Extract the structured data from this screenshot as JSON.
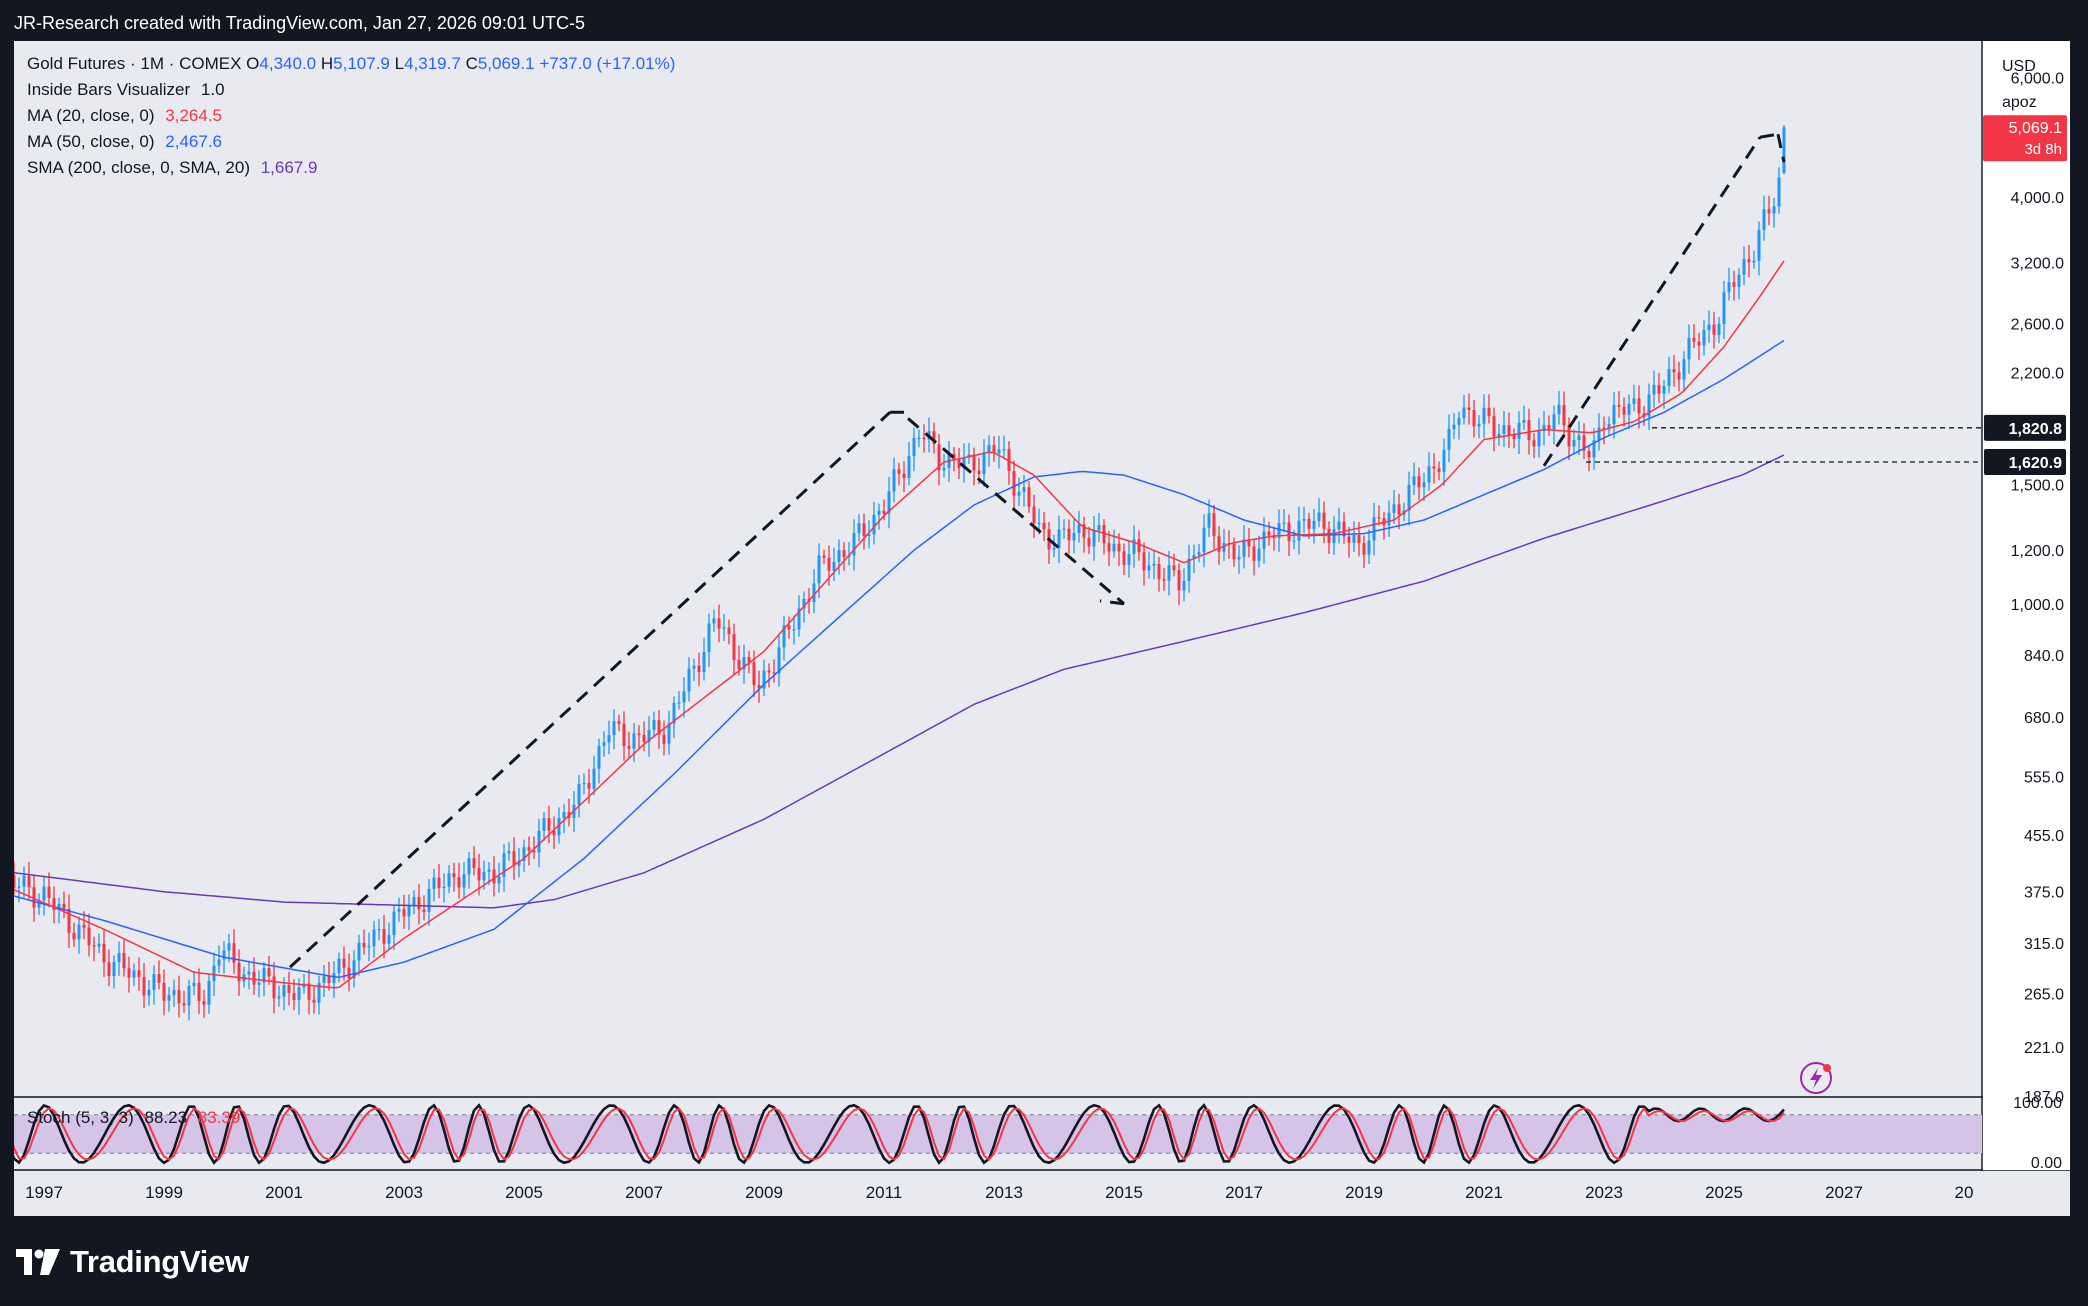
{
  "header": {
    "attribution": "JR-Research created with TradingView.com, Jan 27, 2026 09:01 UTC-5"
  },
  "legend": {
    "symbol": "Gold Futures · 1M · COMEX",
    "open_label": "O",
    "open": "4,340.0",
    "high_label": "H",
    "high": "5,107.9",
    "low_label": "L",
    "low": "4,319.7",
    "close_label": "C",
    "close": "5,069.1",
    "change": "+737.0 (+17.01%)",
    "indicators": [
      {
        "name": "Inside Bars Visualizer",
        "value": "1.0",
        "color": "#131722"
      },
      {
        "name": "MA (20, close, 0)",
        "value": "3,264.5",
        "color": "#f23645"
      },
      {
        "name": "MA (50, close, 0)",
        "value": "2,467.6",
        "color": "#2962ff"
      },
      {
        "name": "SMA (200, close, 0, SMA, 20)",
        "value": "1,667.9",
        "color": "#673ab7"
      }
    ]
  },
  "price_axis": {
    "currency": "USD",
    "scale_mode": "apoz",
    "ticks": [
      "6,000.0",
      "4,000.0",
      "3,200.0",
      "2,600.0",
      "2,200.0",
      "1,500.0",
      "1,200.0",
      "1,000.0",
      "840.0",
      "680.0",
      "555.0",
      "455.0",
      "375.0",
      "315.0",
      "265.0",
      "221.0",
      "187.0"
    ],
    "last_price": "5,069.1",
    "countdown": "3d 8h",
    "level_labels": [
      "1,820.8",
      "1,620.9"
    ]
  },
  "stoch": {
    "label": "Stoch (5, 3, 3)",
    "k": "88.23",
    "d": "83.39",
    "ticks": [
      "100.00",
      "0.00"
    ]
  },
  "time_axis": {
    "ticks": [
      "1997",
      "1999",
      "2001",
      "2003",
      "2005",
      "2007",
      "2009",
      "2011",
      "2013",
      "2015",
      "2017",
      "2019",
      "2021",
      "2023",
      "2025",
      "2027",
      "20"
    ]
  },
  "footer": {
    "brand": "TradingView"
  },
  "colors": {
    "up": "#2196f3",
    "down": "#f23645",
    "ma20": "#f23645",
    "ma50": "#2962ff",
    "sma200": "#673ab7",
    "stoch_k": "#131722",
    "stoch_d": "#f23645",
    "stoch_band": "#d6c4e8"
  },
  "chart_data": {
    "type": "candlestick",
    "scale": "log",
    "ylim": [
      187,
      6800
    ],
    "xlim": [
      1996.5,
      2029.3
    ],
    "price_path": [
      [
        1996.0,
        400
      ],
      [
        1997.0,
        370
      ],
      [
        1998.0,
        300
      ],
      [
        1999.0,
        265
      ],
      [
        1999.7,
        262
      ],
      [
        1999.9,
        310
      ],
      [
        2000.3,
        285
      ],
      [
        2000.9,
        270
      ],
      [
        2001.3,
        262
      ],
      [
        2001.9,
        285
      ],
      [
        2002.5,
        320
      ],
      [
        2003.0,
        350
      ],
      [
        2003.9,
        400
      ],
      [
        2004.5,
        400
      ],
      [
        2005.0,
        430
      ],
      [
        2005.9,
        510
      ],
      [
        2006.4,
        650
      ],
      [
        2006.9,
        630
      ],
      [
        2007.4,
        660
      ],
      [
        2007.9,
        830
      ],
      [
        2008.2,
        950
      ],
      [
        2008.9,
        750
      ],
      [
        2009.5,
        940
      ],
      [
        2009.9,
        1120
      ],
      [
        2010.5,
        1230
      ],
      [
        2011.0,
        1400
      ],
      [
        2011.6,
        1800
      ],
      [
        2011.9,
        1650
      ],
      [
        2012.4,
        1600
      ],
      [
        2012.9,
        1700
      ],
      [
        2013.3,
        1450
      ],
      [
        2013.6,
        1280
      ],
      [
        2013.9,
        1240
      ],
      [
        2014.3,
        1290
      ],
      [
        2014.9,
        1200
      ],
      [
        2015.2,
        1180
      ],
      [
        2015.9,
        1070
      ],
      [
        2016.4,
        1300
      ],
      [
        2016.9,
        1170
      ],
      [
        2017.4,
        1260
      ],
      [
        2017.9,
        1300
      ],
      [
        2018.3,
        1320
      ],
      [
        2018.9,
        1220
      ],
      [
        2019.4,
        1350
      ],
      [
        2019.9,
        1500
      ],
      [
        2020.4,
        1700
      ],
      [
        2020.6,
        1970
      ],
      [
        2020.9,
        1870
      ],
      [
        2021.4,
        1800
      ],
      [
        2021.9,
        1780
      ],
      [
        2022.2,
        1900
      ],
      [
        2022.8,
        1640
      ],
      [
        2023.0,
        1900
      ],
      [
        2023.5,
        1950
      ],
      [
        2023.9,
        2050
      ],
      [
        2024.3,
        2300
      ],
      [
        2024.9,
        2650
      ],
      [
        2025.2,
        3050
      ],
      [
        2025.5,
        3350
      ],
      [
        2025.8,
        3900
      ],
      [
        2025.95,
        4340
      ],
      [
        2026.05,
        5069
      ]
    ],
    "last": {
      "open": 4340.0,
      "high": 5107.9,
      "low": 4319.7,
      "close": 5069.1
    },
    "ma20_path": [
      [
        1996.0,
        395
      ],
      [
        1998.0,
        330
      ],
      [
        1999.5,
        285
      ],
      [
        2001.0,
        275
      ],
      [
        2001.9,
        270
      ],
      [
        2003.0,
        320
      ],
      [
        2005.0,
        420
      ],
      [
        2007.0,
        620
      ],
      [
        2009.0,
        850
      ],
      [
        2011.0,
        1350
      ],
      [
        2012.0,
        1620
      ],
      [
        2012.8,
        1680
      ],
      [
        2013.5,
        1550
      ],
      [
        2014.3,
        1300
      ],
      [
        2015.2,
        1230
      ],
      [
        2016.0,
        1150
      ],
      [
        2016.8,
        1230
      ],
      [
        2017.5,
        1260
      ],
      [
        2018.5,
        1270
      ],
      [
        2019.5,
        1330
      ],
      [
        2020.3,
        1500
      ],
      [
        2021.0,
        1750
      ],
      [
        2022.0,
        1810
      ],
      [
        2022.8,
        1790
      ],
      [
        2023.5,
        1860
      ],
      [
        2024.3,
        2050
      ],
      [
        2025.0,
        2400
      ],
      [
        2025.6,
        2850
      ],
      [
        2026.05,
        3264.5
      ]
    ],
    "ma50_path": [
      [
        1996.0,
        380
      ],
      [
        1998.0,
        340
      ],
      [
        2000.0,
        300
      ],
      [
        2001.9,
        280
      ],
      [
        2003.0,
        295
      ],
      [
        2004.5,
        330
      ],
      [
        2006.0,
        420
      ],
      [
        2007.5,
        560
      ],
      [
        2009.0,
        760
      ],
      [
        2010.5,
        1000
      ],
      [
        2011.5,
        1200
      ],
      [
        2012.5,
        1400
      ],
      [
        2013.5,
        1540
      ],
      [
        2014.3,
        1570
      ],
      [
        2015.0,
        1550
      ],
      [
        2016.0,
        1450
      ],
      [
        2017.0,
        1330
      ],
      [
        2018.0,
        1260
      ],
      [
        2019.0,
        1270
      ],
      [
        2020.0,
        1330
      ],
      [
        2021.0,
        1450
      ],
      [
        2022.0,
        1580
      ],
      [
        2023.0,
        1760
      ],
      [
        2024.0,
        1920
      ],
      [
        2025.0,
        2150
      ],
      [
        2026.05,
        2467.6
      ]
    ],
    "sma200_path": [
      [
        1996.0,
        405
      ],
      [
        1997.0,
        395
      ],
      [
        1999.0,
        375
      ],
      [
        2001.0,
        362
      ],
      [
        2003.0,
        358
      ],
      [
        2004.5,
        355
      ],
      [
        2005.5,
        365
      ],
      [
        2007.0,
        400
      ],
      [
        2009.0,
        480
      ],
      [
        2011.0,
        600
      ],
      [
        2012.5,
        710
      ],
      [
        2014.0,
        800
      ],
      [
        2016.0,
        880
      ],
      [
        2018.0,
        970
      ],
      [
        2020.0,
        1080
      ],
      [
        2022.0,
        1250
      ],
      [
        2024.0,
        1420
      ],
      [
        2025.3,
        1550
      ],
      [
        2026.05,
        1667.9
      ]
    ],
    "trend_lines": [
      [
        [
          2001.1,
          290
        ],
        [
          2011.1,
          1920
        ]
      ],
      [
        [
          2011.1,
          1920
        ],
        [
          2011.4,
          1920
        ]
      ],
      [
        [
          2011.4,
          1880
        ],
        [
          2015.0,
          1000
        ]
      ],
      [
        [
          2015.0,
          1000
        ],
        [
          2014.6,
          1010
        ]
      ],
      [
        [
          2022.0,
          1600
        ],
        [
          2025.6,
          4900
        ]
      ],
      [
        [
          2025.6,
          4900
        ],
        [
          2025.9,
          4950
        ]
      ],
      [
        [
          2025.9,
          4950
        ],
        [
          2026.0,
          4500
        ]
      ]
    ],
    "h_levels": [
      {
        "value": 1820.8,
        "from": 2023.8
      },
      {
        "value": 1620.9,
        "from": 2022.7
      }
    ],
    "stoch_series": {
      "period_years": 1.35,
      "k_last": 88.23,
      "d_last": 83.39,
      "band": [
        20,
        80
      ]
    }
  }
}
